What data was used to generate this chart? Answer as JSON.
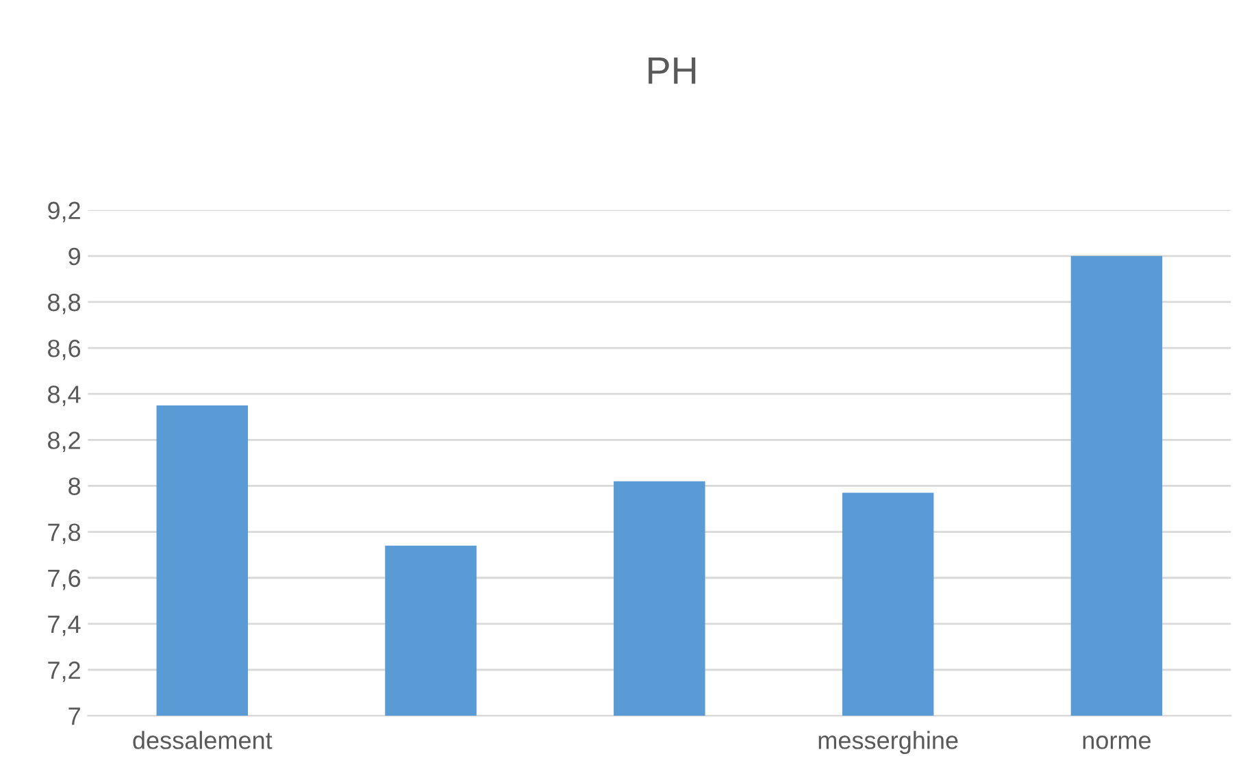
{
  "chart_data": {
    "type": "bar",
    "title": "PH",
    "categories": [
      "dessalement",
      null,
      null,
      "messerghine",
      "norme"
    ],
    "values": [
      8.35,
      7.74,
      8.02,
      7.97,
      9.0
    ],
    "color": "#5b9bd5",
    "ylim": [
      7,
      9.2
    ],
    "yticks": [
      7,
      {
        "value": 7.2,
        "label": "7,2"
      },
      {
        "value": 7.4,
        "label": "7,4"
      },
      {
        "value": 7.6,
        "label": "7,6"
      },
      {
        "value": 7.8,
        "label": "7,8"
      },
      8,
      {
        "value": 8.2,
        "label": "8,2"
      },
      {
        "value": 8.4,
        "label": "8,4"
      },
      {
        "value": 8.6,
        "label": "8,6"
      },
      {
        "value": 8.8,
        "label": "8,8"
      },
      9,
      {
        "value": 9.2,
        "label": "9,2"
      }
    ],
    "grid": "y"
  }
}
